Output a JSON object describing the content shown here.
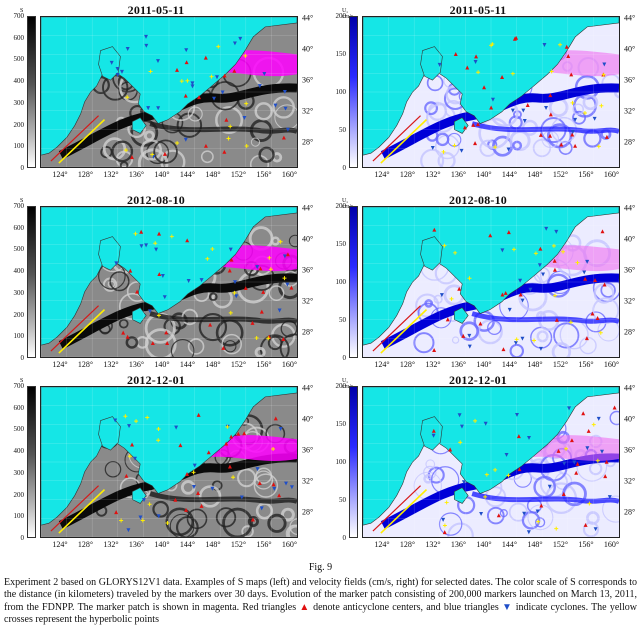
{
  "figure": {
    "panels": [
      {
        "date": "2011-05-11",
        "type": "S",
        "scale_unit": "S",
        "scale_ticks": [
          "700",
          "600",
          "500",
          "400",
          "300",
          "200",
          "100",
          "0"
        ]
      },
      {
        "date": "2011-05-11",
        "type": "U",
        "scale_unit": "U, cm/s",
        "scale_ticks": [
          "200",
          "150",
          "100",
          "50",
          "0"
        ]
      },
      {
        "date": "2012-08-10",
        "type": "S",
        "scale_unit": "S",
        "scale_ticks": [
          "700",
          "600",
          "500",
          "400",
          "300",
          "200",
          "100",
          "0"
        ]
      },
      {
        "date": "2012-08-10",
        "type": "U",
        "scale_unit": "U, cm/s",
        "scale_ticks": [
          "200",
          "150",
          "100",
          "50",
          "0"
        ]
      },
      {
        "date": "2012-12-01",
        "type": "S",
        "scale_unit": "S",
        "scale_ticks": [
          "700",
          "600",
          "500",
          "400",
          "300",
          "200",
          "100",
          "0"
        ]
      },
      {
        "date": "2012-12-01",
        "type": "U",
        "scale_unit": "U, cm/s",
        "scale_ticks": [
          "200",
          "150",
          "100",
          "50",
          "0"
        ]
      }
    ],
    "lat_ticks": [
      "44°",
      "40°",
      "36°",
      "32°",
      "28°"
    ],
    "lon_ticks": [
      "124°",
      "128°",
      "132°",
      "136°",
      "140°",
      "144°",
      "148°",
      "152°",
      "156°",
      "160°"
    ],
    "colors": {
      "land": "#15e6e6",
      "marker": "#ff00ff",
      "anticyclone": "#e01010",
      "cyclone": "#1f4ec8",
      "hyperbolic": "#ffee00"
    }
  },
  "caption": {
    "label": "Fig. 9",
    "part1": "Experiment 2 based on GLORYS12V1 data. Examples of S maps (left) and velocity fields (cm/s, right) for selected dates. The color scale of S corresponds to the distance (in kilometers) traveled by the markers over 30 days. Evolution of the marker patch consisting of 200,000 markers launched on March 13, 2011, from the FDNPP. The marker patch is shown in magenta. Red triangles",
    "part2": "denote anticyclone centers, and blue triangles",
    "part3": "indicate cyclones. The yellow crosses represent the hyperbolic points",
    "tri_up": "▲",
    "tri_down": "▼"
  }
}
